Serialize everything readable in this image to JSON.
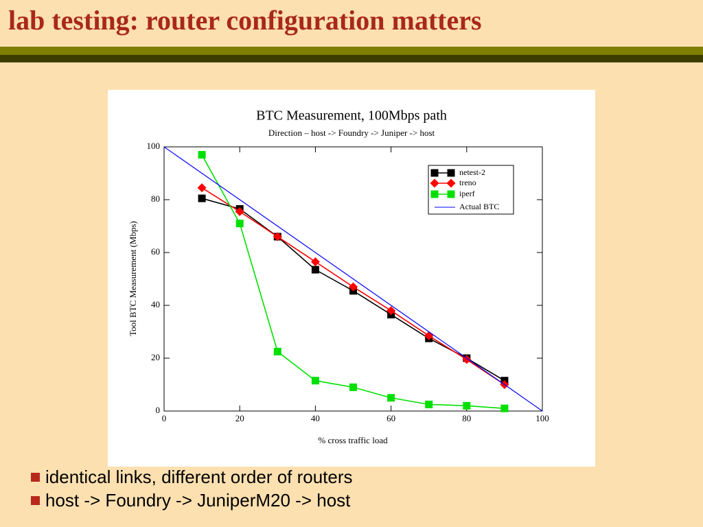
{
  "title": "lab testing: router configuration matters",
  "bullets": [
    "identical links, different order of routers",
    "host -> Foundry -> JuniperM20 -> host"
  ],
  "chart_data": {
    "type": "line",
    "title": "BTC Measurement, 100Mbps path",
    "subtitle": "Direction – host -> Foundry -> Juniper -> host",
    "x_label": "% cross traffic load",
    "y_label": "Tool BTC Measurement (Mbps)",
    "xlim": [
      0,
      100
    ],
    "xticks": [
      0,
      20,
      40,
      60,
      80,
      100
    ],
    "ylim": [
      0,
      100
    ],
    "yticks": [
      0,
      20,
      40,
      60,
      80,
      100
    ],
    "legend": "upper right",
    "series": [
      {
        "name": "netest-2",
        "color": "#000000",
        "marker": "square",
        "x": [
          10,
          20,
          30,
          40,
          50,
          60,
          70,
          80,
          90
        ],
        "values": [
          80.5,
          76.5,
          66,
          53.5,
          45.5,
          36.5,
          27.5,
          20,
          11.5
        ]
      },
      {
        "name": "treno",
        "color": "#ff0000",
        "marker": "diamond",
        "x": [
          10,
          20,
          30,
          40,
          50,
          60,
          70,
          80,
          90
        ],
        "values": [
          84.5,
          75.5,
          66,
          56.5,
          47,
          38,
          28.5,
          19.5,
          10
        ]
      },
      {
        "name": "iperf",
        "color": "#00e000",
        "marker": "square",
        "x": [
          10,
          20,
          30,
          40,
          50,
          60,
          70,
          80,
          90
        ],
        "values": [
          97,
          71,
          22.5,
          11.5,
          9,
          5,
          2.5,
          2,
          1
        ]
      },
      {
        "name": "Actual BTC",
        "color": "#0000ff",
        "marker": "none",
        "x": [
          0,
          100
        ],
        "values": [
          100,
          0
        ]
      }
    ]
  }
}
